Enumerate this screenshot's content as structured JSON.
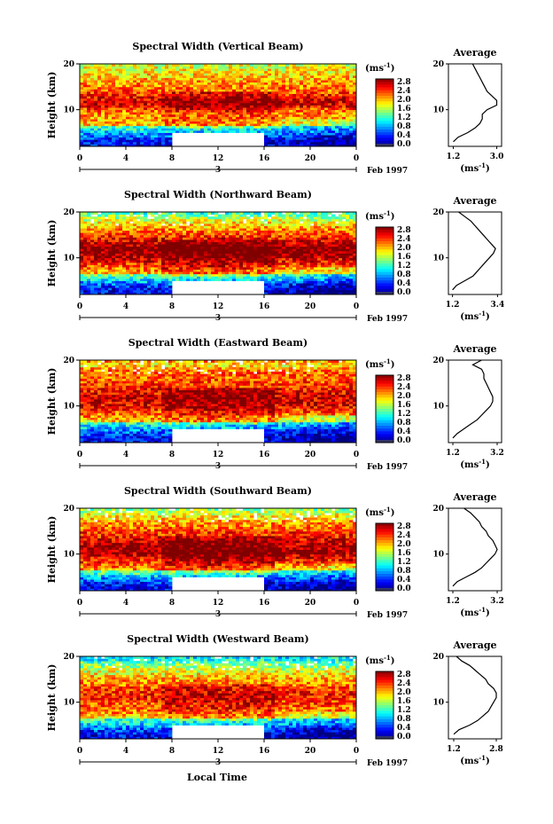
{
  "figure": {
    "xlabel": "Local Time",
    "x_ticks": [
      "0",
      "4",
      "8",
      "12",
      "16",
      "20",
      "0"
    ],
    "date_bar_label": "3",
    "date_label": "Feb 1997",
    "ylabel": "Height (km)",
    "y_ticks": [
      "20",
      "10"
    ],
    "colorbar_unit": "(ms",
    "colorbar_unit_exp": "-1",
    "colorbar_ticks": [
      "2.8",
      "2.4",
      "2.0",
      "1.6",
      "1.2",
      "0.8",
      "0.4",
      "0.0"
    ],
    "avg_title": "Average",
    "avg_unit": "(ms",
    "avg_unit_exp": "-1"
  },
  "chart_data": [
    {
      "type": "heatmap",
      "title": "Spectral Width (Vertical Beam)",
      "xlabel": "Local Time",
      "ylabel": "Height (km)",
      "x_range": [
        0,
        24
      ],
      "y_range": [
        2,
        20
      ],
      "value_range_ms": [
        0.0,
        3.0
      ],
      "colormap": "jet",
      "data_gap": {
        "x": [
          8,
          16
        ],
        "y": [
          2,
          4.8
        ]
      },
      "average_profile": {
        "type": "line",
        "title": "Average",
        "xlabel": "(ms-1)",
        "x_ticks": [
          "1.2",
          "3.0"
        ],
        "xlim": [
          1.0,
          3.2
        ],
        "height_km": [
          3,
          4,
          5,
          6,
          7,
          8,
          9,
          10,
          11,
          12,
          13,
          14,
          15,
          16,
          17,
          18,
          19,
          20
        ],
        "width_ms": [
          1.2,
          1.4,
          1.8,
          2.1,
          2.3,
          2.4,
          2.4,
          2.6,
          3.0,
          3.0,
          2.8,
          2.6,
          2.5,
          2.4,
          2.3,
          2.2,
          2.1,
          2.0
        ]
      }
    },
    {
      "type": "heatmap",
      "title": "Spectral Width (Northward Beam)",
      "xlabel": "Local Time",
      "ylabel": "Height (km)",
      "x_range": [
        0,
        24
      ],
      "y_range": [
        2,
        20
      ],
      "value_range_ms": [
        0.0,
        3.0
      ],
      "colormap": "jet",
      "data_gap": {
        "x": [
          8,
          16
        ],
        "y": [
          2,
          4.8
        ]
      },
      "average_profile": {
        "type": "line",
        "title": "Average",
        "xlabel": "(ms-1)",
        "x_ticks": [
          "1.2",
          "3.4"
        ],
        "xlim": [
          1.0,
          3.6
        ],
        "height_km": [
          3,
          4,
          5,
          6,
          7,
          8,
          9,
          10,
          11,
          12,
          13,
          14,
          15,
          16,
          17,
          18,
          19,
          20
        ],
        "width_ms": [
          1.2,
          1.4,
          1.8,
          2.2,
          2.4,
          2.6,
          2.8,
          3.0,
          3.2,
          3.3,
          3.1,
          2.9,
          2.7,
          2.5,
          2.3,
          2.1,
          1.8,
          1.5
        ]
      }
    },
    {
      "type": "heatmap",
      "title": "Spectral Width (Eastward Beam)",
      "xlabel": "Local Time",
      "ylabel": "Height (km)",
      "x_range": [
        0,
        24
      ],
      "y_range": [
        2,
        20
      ],
      "value_range_ms": [
        0.0,
        3.0
      ],
      "colormap": "jet",
      "data_gap": {
        "x": [
          8,
          16
        ],
        "y": [
          2,
          4.8
        ]
      },
      "average_profile": {
        "type": "line",
        "title": "Average",
        "xlabel": "(ms-1)",
        "x_ticks": [
          "1.2",
          "3.2"
        ],
        "xlim": [
          1.0,
          3.4
        ],
        "height_km": [
          3,
          4,
          5,
          6,
          7,
          8,
          9,
          10,
          11,
          12,
          13,
          14,
          15,
          16,
          17,
          18,
          19,
          20
        ],
        "width_ms": [
          1.2,
          1.4,
          1.7,
          2.0,
          2.3,
          2.5,
          2.7,
          2.9,
          3.0,
          3.0,
          2.9,
          2.8,
          2.7,
          2.6,
          2.6,
          2.5,
          2.1,
          2.5
        ]
      }
    },
    {
      "type": "heatmap",
      "title": "Spectral Width (Southward Beam)",
      "xlabel": "Local Time",
      "ylabel": "Height (km)",
      "x_range": [
        0,
        24
      ],
      "y_range": [
        2,
        20
      ],
      "value_range_ms": [
        0.0,
        3.0
      ],
      "colormap": "jet",
      "data_gap": {
        "x": [
          8,
          16
        ],
        "y": [
          2,
          4.8
        ]
      },
      "average_profile": {
        "type": "line",
        "title": "Average",
        "xlabel": "(ms-1)",
        "x_ticks": [
          "1.2",
          "3.2"
        ],
        "xlim": [
          1.0,
          3.4
        ],
        "height_km": [
          3,
          4,
          5,
          6,
          7,
          8,
          9,
          10,
          11,
          12,
          13,
          14,
          15,
          16,
          17,
          18,
          19,
          20
        ],
        "width_ms": [
          1.2,
          1.4,
          1.8,
          2.2,
          2.5,
          2.7,
          2.9,
          3.1,
          3.2,
          3.1,
          3.0,
          2.8,
          2.7,
          2.5,
          2.4,
          2.2,
          2.0,
          1.7
        ]
      }
    },
    {
      "type": "heatmap",
      "title": "Spectral Width (Westward Beam)",
      "xlabel": "Local Time",
      "ylabel": "Height (km)",
      "x_range": [
        0,
        24
      ],
      "y_range": [
        2,
        20
      ],
      "value_range_ms": [
        0.0,
        3.0
      ],
      "colormap": "jet",
      "data_gap": {
        "x": [
          8,
          16
        ],
        "y": [
          2,
          4.8
        ]
      },
      "average_profile": {
        "type": "line",
        "title": "Average",
        "xlabel": "(ms-1)",
        "x_ticks": [
          "1.2",
          "2.8"
        ],
        "xlim": [
          1.0,
          3.0
        ],
        "height_km": [
          3,
          4,
          5,
          6,
          7,
          8,
          9,
          10,
          11,
          12,
          13,
          14,
          15,
          16,
          17,
          18,
          19,
          20
        ],
        "width_ms": [
          1.2,
          1.4,
          1.8,
          2.1,
          2.3,
          2.5,
          2.6,
          2.7,
          2.8,
          2.8,
          2.7,
          2.5,
          2.4,
          2.2,
          2.0,
          1.8,
          1.5,
          1.3
        ]
      }
    }
  ]
}
